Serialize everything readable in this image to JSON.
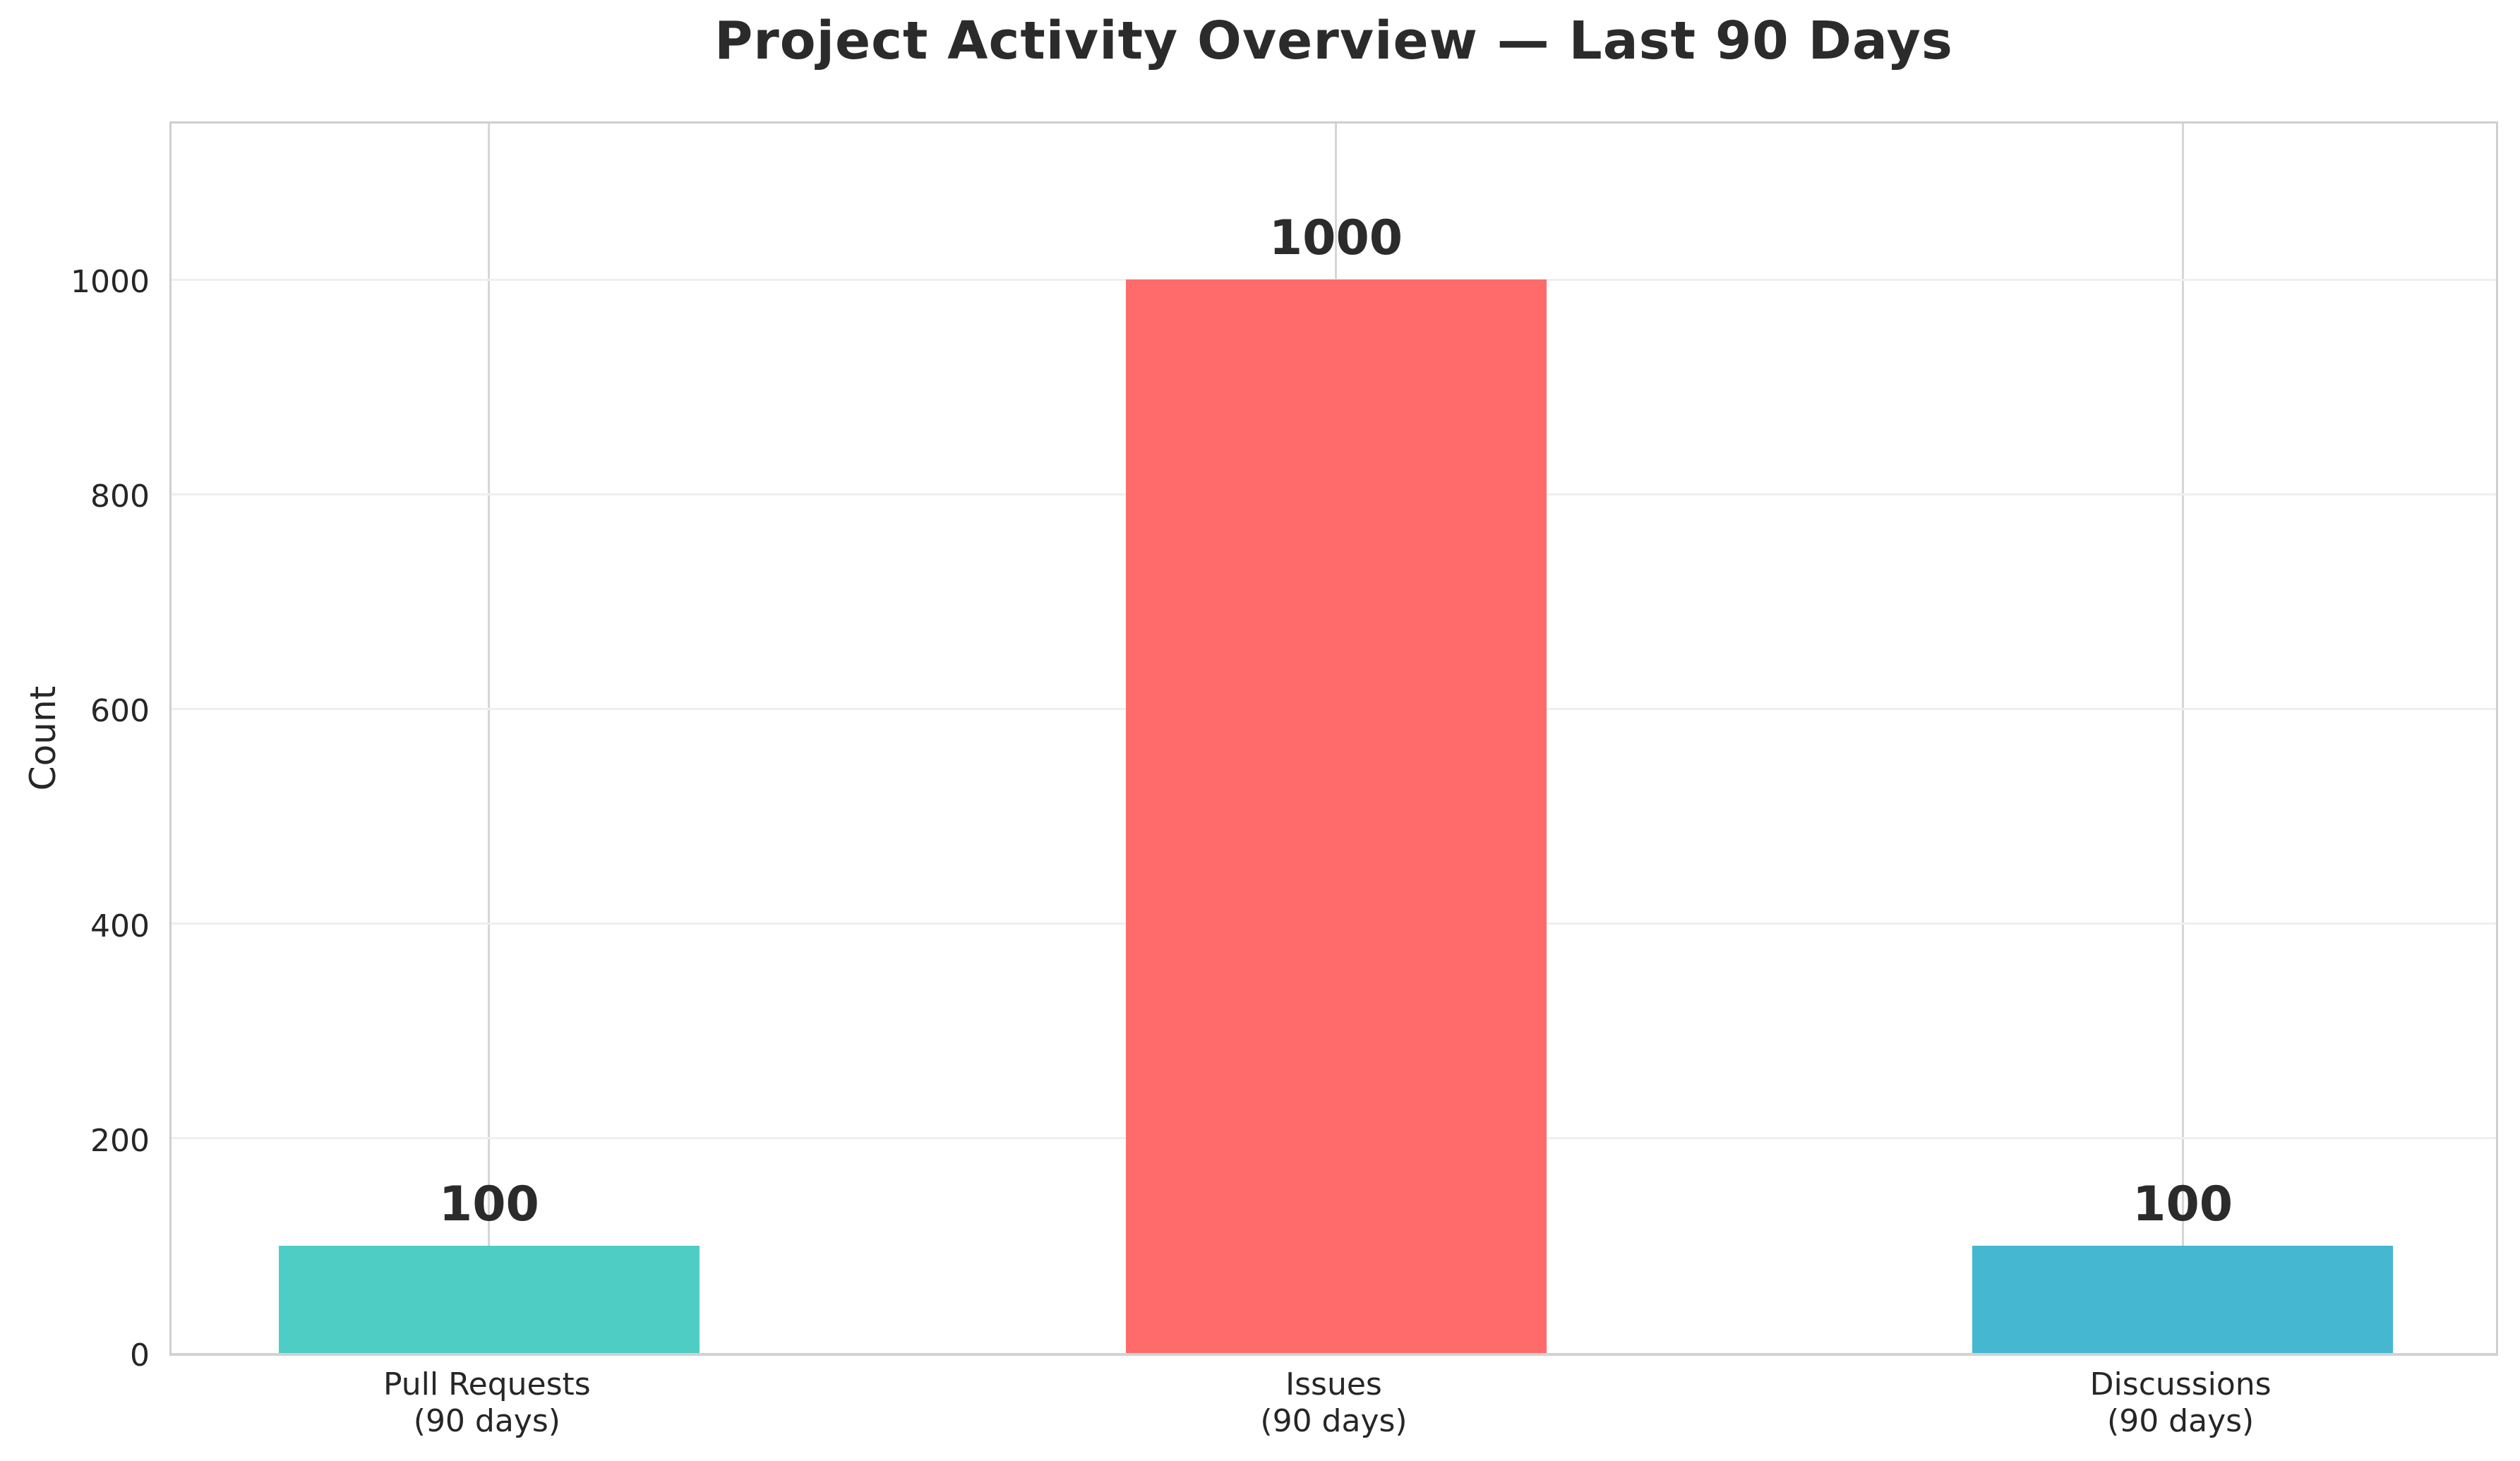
{
  "chart_data": {
    "type": "bar",
    "title": "Project Activity Overview — Last 90 Days",
    "xlabel": "",
    "ylabel": "Count",
    "categories": [
      [
        "Pull Requests",
        "(90 days)"
      ],
      [
        "Issues",
        "(90 days)"
      ],
      [
        "Discussions",
        "(90 days)"
      ]
    ],
    "category_slugs": [
      "pull-requests",
      "issues",
      "discussions"
    ],
    "values": [
      100,
      1000,
      100
    ],
    "value_labels": [
      "100",
      "1000",
      "100"
    ],
    "bar_colors": [
      "#4ECDC4",
      "#FF6B6B",
      "#45B7D1"
    ],
    "ytick_labels": [
      "0",
      "200",
      "400",
      "600",
      "800",
      "1000"
    ],
    "ytick_values": [
      0,
      200,
      400,
      600,
      800,
      1000
    ],
    "ylim": [
      0,
      1150
    ],
    "grid": "on",
    "legend": "none",
    "colors": {
      "title_text": "#2b2b2b",
      "tick_text": "#262626",
      "horizontal_grid": "#efefef",
      "vertical_grid": "#d6d6d6",
      "spine": "#cfcfcf",
      "background": "#ffffff"
    }
  }
}
